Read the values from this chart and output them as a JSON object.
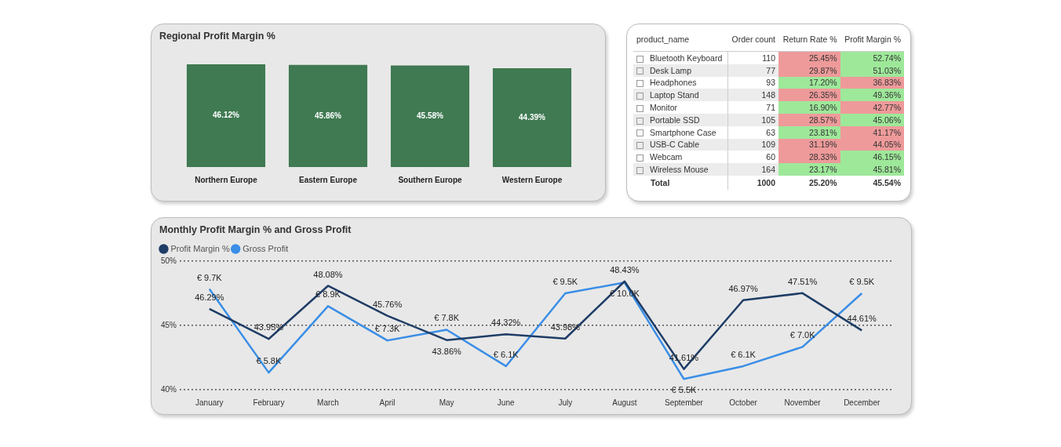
{
  "chart_data": [
    {
      "type": "bar",
      "title": "Regional Profit Margin %",
      "categories": [
        "Northern Europe",
        "Eastern Europe",
        "Southern Europe",
        "Western Europe"
      ],
      "values": [
        46.12,
        45.86,
        45.58,
        44.39
      ],
      "value_labels": [
        "46.12%",
        "45.86%",
        "45.58%",
        "44.39%"
      ],
      "color": "#3f7a52",
      "tick_labels": "x",
      "grid": false,
      "legend": false
    },
    {
      "type": "other",
      "xlabel": "product_name",
      "categories": [
        "Bluetooth Keyboard",
        "Desk Lamp",
        "Headphones",
        "Laptop Stand",
        "Monitor",
        "Portable SSD",
        "Smartphone Case",
        "USB-C Cable",
        "Webcam",
        "Wireless Mouse"
      ],
      "series": [
        {
          "name": "Order count",
          "values": [
            110,
            77,
            93,
            148,
            71,
            105,
            63,
            109,
            60,
            164
          ],
          "value_labels": [
            "110",
            "77",
            "93",
            "148",
            "71",
            "105",
            "63",
            "109",
            "60",
            "164"
          ],
          "colors": [
            "#ffffff",
            "#ececec",
            "#ffffff",
            "#ececec",
            "#ffffff",
            "#ececec",
            "#ffffff",
            "#ececec",
            "#ffffff",
            "#ececec"
          ]
        },
        {
          "name": "Return Rate %",
          "values": [
            25.45,
            29.87,
            17.2,
            26.35,
            16.9,
            28.57,
            23.81,
            31.19,
            28.33,
            23.17
          ],
          "value_labels": [
            "25.45%",
            "29.87%",
            "17.20%",
            "26.35%",
            "16.90%",
            "28.57%",
            "23.81%",
            "31.19%",
            "28.33%",
            "23.17%"
          ],
          "colors": [
            "#ee9a9a",
            "#ee9a9a",
            "#9ee89a",
            "#ee9a9a",
            "#9ee89a",
            "#ee9a9a",
            "#9ee89a",
            "#ee9a9a",
            "#ee9a9a",
            "#9ee89a"
          ]
        },
        {
          "name": "Profit Margin %",
          "values": [
            52.74,
            51.03,
            36.83,
            49.36,
            42.77,
            45.06,
            41.17,
            44.05,
            46.15,
            45.81
          ],
          "value_labels": [
            "52.74%",
            "51.03%",
            "36.83%",
            "49.36%",
            "42.77%",
            "45.06%",
            "41.17%",
            "44.05%",
            "46.15%",
            "45.81%"
          ],
          "colors": [
            "#9ee89a",
            "#9ee89a",
            "#ee9a9a",
            "#9ee89a",
            "#ee9a9a",
            "#9ee89a",
            "#ee9a9a",
            "#ee9a9a",
            "#9ee89a",
            "#9ee89a"
          ]
        }
      ],
      "totals": [
        "Total",
        "1000",
        "25.20%",
        "45.54%"
      ]
    },
    {
      "type": "line",
      "title": "Monthly Profit Margin % and Gross Profit",
      "categories": [
        "January",
        "February",
        "March",
        "April",
        "May",
        "June",
        "July",
        "August",
        "September",
        "October",
        "November",
        "December"
      ],
      "series": [
        {
          "name": "Profit Margin %",
          "color": "#1f3d66",
          "values": [
            46.29,
            43.95,
            48.08,
            45.76,
            43.86,
            44.32,
            43.98,
            48.43,
            41.61,
            46.97,
            47.51,
            44.61
          ],
          "value_labels": [
            "46.29%",
            "43.95%",
            "48.08%",
            "45.76%",
            "43.86%",
            "44.32%",
            "43.98%",
            "48.43%",
            "41.61%",
            "46.97%",
            "47.51%",
            "44.61%"
          ]
        },
        {
          "name": "Gross Profit",
          "color": "#3a8ee6",
          "axis": "y2",
          "values": [
            9.7,
            5.8,
            8.9,
            7.3,
            7.8,
            6.1,
            9.5,
            10.0,
            5.5,
            6.1,
            7.0,
            9.5
          ],
          "value_labels": [
            "€ 9.7K",
            "€ 5.8K",
            "€ 8.9K",
            "€ 7.3K",
            "€ 7.8K",
            "€ 6.1K",
            "€ 9.5K",
            "€ 10.0K",
            "€ 5.5K",
            "€ 6.1K",
            "€ 7.0K",
            "€ 9.5K"
          ]
        }
      ],
      "ylim": [
        40,
        50
      ],
      "yticks": [
        {
          "value": 40,
          "label": "40%"
        },
        {
          "value": 45,
          "label": "45%"
        },
        {
          "value": 50,
          "label": "50%"
        }
      ],
      "y2lim": [
        5,
        11
      ],
      "tick_labels": "xy",
      "grid": "y",
      "legend": "top left",
      "marker": "none",
      "line_style": "solid"
    }
  ]
}
